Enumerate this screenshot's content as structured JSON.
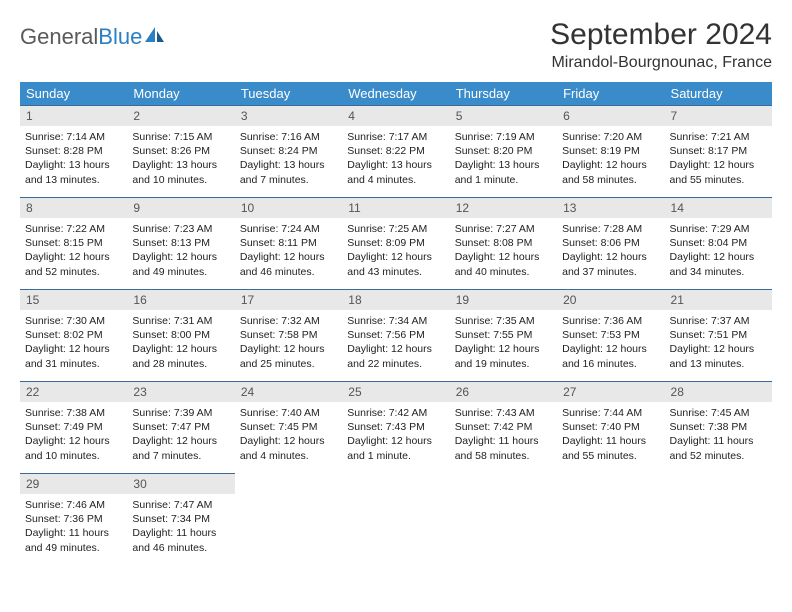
{
  "logo": {
    "text1": "General",
    "text2": "Blue"
  },
  "title": "September 2024",
  "location": "Mirandol-Bourgnounac, France",
  "colors": {
    "header_bg": "#3a8bc9",
    "header_text": "#ffffff",
    "daynum_bg": "#e8e8e8",
    "daynum_border": "#3a6a9a",
    "logo_gray": "#5a5a5a",
    "logo_blue": "#2b7fc3"
  },
  "weekdays": [
    "Sunday",
    "Monday",
    "Tuesday",
    "Wednesday",
    "Thursday",
    "Friday",
    "Saturday"
  ],
  "grid": [
    [
      {
        "n": "1",
        "sr": "Sunrise: 7:14 AM",
        "ss": "Sunset: 8:28 PM",
        "d1": "Daylight: 13 hours",
        "d2": "and 13 minutes."
      },
      {
        "n": "2",
        "sr": "Sunrise: 7:15 AM",
        "ss": "Sunset: 8:26 PM",
        "d1": "Daylight: 13 hours",
        "d2": "and 10 minutes."
      },
      {
        "n": "3",
        "sr": "Sunrise: 7:16 AM",
        "ss": "Sunset: 8:24 PM",
        "d1": "Daylight: 13 hours",
        "d2": "and 7 minutes."
      },
      {
        "n": "4",
        "sr": "Sunrise: 7:17 AM",
        "ss": "Sunset: 8:22 PM",
        "d1": "Daylight: 13 hours",
        "d2": "and 4 minutes."
      },
      {
        "n": "5",
        "sr": "Sunrise: 7:19 AM",
        "ss": "Sunset: 8:20 PM",
        "d1": "Daylight: 13 hours",
        "d2": "and 1 minute."
      },
      {
        "n": "6",
        "sr": "Sunrise: 7:20 AM",
        "ss": "Sunset: 8:19 PM",
        "d1": "Daylight: 12 hours",
        "d2": "and 58 minutes."
      },
      {
        "n": "7",
        "sr": "Sunrise: 7:21 AM",
        "ss": "Sunset: 8:17 PM",
        "d1": "Daylight: 12 hours",
        "d2": "and 55 minutes."
      }
    ],
    [
      {
        "n": "8",
        "sr": "Sunrise: 7:22 AM",
        "ss": "Sunset: 8:15 PM",
        "d1": "Daylight: 12 hours",
        "d2": "and 52 minutes."
      },
      {
        "n": "9",
        "sr": "Sunrise: 7:23 AM",
        "ss": "Sunset: 8:13 PM",
        "d1": "Daylight: 12 hours",
        "d2": "and 49 minutes."
      },
      {
        "n": "10",
        "sr": "Sunrise: 7:24 AM",
        "ss": "Sunset: 8:11 PM",
        "d1": "Daylight: 12 hours",
        "d2": "and 46 minutes."
      },
      {
        "n": "11",
        "sr": "Sunrise: 7:25 AM",
        "ss": "Sunset: 8:09 PM",
        "d1": "Daylight: 12 hours",
        "d2": "and 43 minutes."
      },
      {
        "n": "12",
        "sr": "Sunrise: 7:27 AM",
        "ss": "Sunset: 8:08 PM",
        "d1": "Daylight: 12 hours",
        "d2": "and 40 minutes."
      },
      {
        "n": "13",
        "sr": "Sunrise: 7:28 AM",
        "ss": "Sunset: 8:06 PM",
        "d1": "Daylight: 12 hours",
        "d2": "and 37 minutes."
      },
      {
        "n": "14",
        "sr": "Sunrise: 7:29 AM",
        "ss": "Sunset: 8:04 PM",
        "d1": "Daylight: 12 hours",
        "d2": "and 34 minutes."
      }
    ],
    [
      {
        "n": "15",
        "sr": "Sunrise: 7:30 AM",
        "ss": "Sunset: 8:02 PM",
        "d1": "Daylight: 12 hours",
        "d2": "and 31 minutes."
      },
      {
        "n": "16",
        "sr": "Sunrise: 7:31 AM",
        "ss": "Sunset: 8:00 PM",
        "d1": "Daylight: 12 hours",
        "d2": "and 28 minutes."
      },
      {
        "n": "17",
        "sr": "Sunrise: 7:32 AM",
        "ss": "Sunset: 7:58 PM",
        "d1": "Daylight: 12 hours",
        "d2": "and 25 minutes."
      },
      {
        "n": "18",
        "sr": "Sunrise: 7:34 AM",
        "ss": "Sunset: 7:56 PM",
        "d1": "Daylight: 12 hours",
        "d2": "and 22 minutes."
      },
      {
        "n": "19",
        "sr": "Sunrise: 7:35 AM",
        "ss": "Sunset: 7:55 PM",
        "d1": "Daylight: 12 hours",
        "d2": "and 19 minutes."
      },
      {
        "n": "20",
        "sr": "Sunrise: 7:36 AM",
        "ss": "Sunset: 7:53 PM",
        "d1": "Daylight: 12 hours",
        "d2": "and 16 minutes."
      },
      {
        "n": "21",
        "sr": "Sunrise: 7:37 AM",
        "ss": "Sunset: 7:51 PM",
        "d1": "Daylight: 12 hours",
        "d2": "and 13 minutes."
      }
    ],
    [
      {
        "n": "22",
        "sr": "Sunrise: 7:38 AM",
        "ss": "Sunset: 7:49 PM",
        "d1": "Daylight: 12 hours",
        "d2": "and 10 minutes."
      },
      {
        "n": "23",
        "sr": "Sunrise: 7:39 AM",
        "ss": "Sunset: 7:47 PM",
        "d1": "Daylight: 12 hours",
        "d2": "and 7 minutes."
      },
      {
        "n": "24",
        "sr": "Sunrise: 7:40 AM",
        "ss": "Sunset: 7:45 PM",
        "d1": "Daylight: 12 hours",
        "d2": "and 4 minutes."
      },
      {
        "n": "25",
        "sr": "Sunrise: 7:42 AM",
        "ss": "Sunset: 7:43 PM",
        "d1": "Daylight: 12 hours",
        "d2": "and 1 minute."
      },
      {
        "n": "26",
        "sr": "Sunrise: 7:43 AM",
        "ss": "Sunset: 7:42 PM",
        "d1": "Daylight: 11 hours",
        "d2": "and 58 minutes."
      },
      {
        "n": "27",
        "sr": "Sunrise: 7:44 AM",
        "ss": "Sunset: 7:40 PM",
        "d1": "Daylight: 11 hours",
        "d2": "and 55 minutes."
      },
      {
        "n": "28",
        "sr": "Sunrise: 7:45 AM",
        "ss": "Sunset: 7:38 PM",
        "d1": "Daylight: 11 hours",
        "d2": "and 52 minutes."
      }
    ],
    [
      {
        "n": "29",
        "sr": "Sunrise: 7:46 AM",
        "ss": "Sunset: 7:36 PM",
        "d1": "Daylight: 11 hours",
        "d2": "and 49 minutes."
      },
      {
        "n": "30",
        "sr": "Sunrise: 7:47 AM",
        "ss": "Sunset: 7:34 PM",
        "d1": "Daylight: 11 hours",
        "d2": "and 46 minutes."
      },
      null,
      null,
      null,
      null,
      null
    ]
  ]
}
